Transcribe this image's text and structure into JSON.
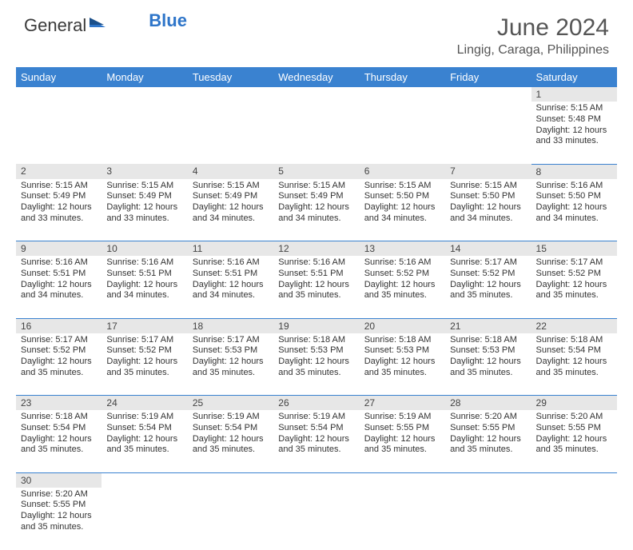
{
  "logo": {
    "part1": "General",
    "part2": "Blue"
  },
  "title": "June 2024",
  "location": "Lingig, Caraga, Philippines",
  "colors": {
    "header_bg": "#3a82d0",
    "header_text": "#ffffff",
    "daynum_bg": "#e7e7e7",
    "border": "#3a82d0",
    "logo_blue": "#2e75c9"
  },
  "weekdays": [
    "Sunday",
    "Monday",
    "Tuesday",
    "Wednesday",
    "Thursday",
    "Friday",
    "Saturday"
  ],
  "weeks": [
    [
      null,
      null,
      null,
      null,
      null,
      null,
      {
        "n": "1",
        "sr": "Sunrise: 5:15 AM",
        "ss": "Sunset: 5:48 PM",
        "d1": "Daylight: 12 hours",
        "d2": "and 33 minutes."
      }
    ],
    [
      {
        "n": "2",
        "sr": "Sunrise: 5:15 AM",
        "ss": "Sunset: 5:49 PM",
        "d1": "Daylight: 12 hours",
        "d2": "and 33 minutes."
      },
      {
        "n": "3",
        "sr": "Sunrise: 5:15 AM",
        "ss": "Sunset: 5:49 PM",
        "d1": "Daylight: 12 hours",
        "d2": "and 33 minutes."
      },
      {
        "n": "4",
        "sr": "Sunrise: 5:15 AM",
        "ss": "Sunset: 5:49 PM",
        "d1": "Daylight: 12 hours",
        "d2": "and 34 minutes."
      },
      {
        "n": "5",
        "sr": "Sunrise: 5:15 AM",
        "ss": "Sunset: 5:49 PM",
        "d1": "Daylight: 12 hours",
        "d2": "and 34 minutes."
      },
      {
        "n": "6",
        "sr": "Sunrise: 5:15 AM",
        "ss": "Sunset: 5:50 PM",
        "d1": "Daylight: 12 hours",
        "d2": "and 34 minutes."
      },
      {
        "n": "7",
        "sr": "Sunrise: 5:15 AM",
        "ss": "Sunset: 5:50 PM",
        "d1": "Daylight: 12 hours",
        "d2": "and 34 minutes."
      },
      {
        "n": "8",
        "sr": "Sunrise: 5:16 AM",
        "ss": "Sunset: 5:50 PM",
        "d1": "Daylight: 12 hours",
        "d2": "and 34 minutes."
      }
    ],
    [
      {
        "n": "9",
        "sr": "Sunrise: 5:16 AM",
        "ss": "Sunset: 5:51 PM",
        "d1": "Daylight: 12 hours",
        "d2": "and 34 minutes."
      },
      {
        "n": "10",
        "sr": "Sunrise: 5:16 AM",
        "ss": "Sunset: 5:51 PM",
        "d1": "Daylight: 12 hours",
        "d2": "and 34 minutes."
      },
      {
        "n": "11",
        "sr": "Sunrise: 5:16 AM",
        "ss": "Sunset: 5:51 PM",
        "d1": "Daylight: 12 hours",
        "d2": "and 34 minutes."
      },
      {
        "n": "12",
        "sr": "Sunrise: 5:16 AM",
        "ss": "Sunset: 5:51 PM",
        "d1": "Daylight: 12 hours",
        "d2": "and 35 minutes."
      },
      {
        "n": "13",
        "sr": "Sunrise: 5:16 AM",
        "ss": "Sunset: 5:52 PM",
        "d1": "Daylight: 12 hours",
        "d2": "and 35 minutes."
      },
      {
        "n": "14",
        "sr": "Sunrise: 5:17 AM",
        "ss": "Sunset: 5:52 PM",
        "d1": "Daylight: 12 hours",
        "d2": "and 35 minutes."
      },
      {
        "n": "15",
        "sr": "Sunrise: 5:17 AM",
        "ss": "Sunset: 5:52 PM",
        "d1": "Daylight: 12 hours",
        "d2": "and 35 minutes."
      }
    ],
    [
      {
        "n": "16",
        "sr": "Sunrise: 5:17 AM",
        "ss": "Sunset: 5:52 PM",
        "d1": "Daylight: 12 hours",
        "d2": "and 35 minutes."
      },
      {
        "n": "17",
        "sr": "Sunrise: 5:17 AM",
        "ss": "Sunset: 5:52 PM",
        "d1": "Daylight: 12 hours",
        "d2": "and 35 minutes."
      },
      {
        "n": "18",
        "sr": "Sunrise: 5:17 AM",
        "ss": "Sunset: 5:53 PM",
        "d1": "Daylight: 12 hours",
        "d2": "and 35 minutes."
      },
      {
        "n": "19",
        "sr": "Sunrise: 5:18 AM",
        "ss": "Sunset: 5:53 PM",
        "d1": "Daylight: 12 hours",
        "d2": "and 35 minutes."
      },
      {
        "n": "20",
        "sr": "Sunrise: 5:18 AM",
        "ss": "Sunset: 5:53 PM",
        "d1": "Daylight: 12 hours",
        "d2": "and 35 minutes."
      },
      {
        "n": "21",
        "sr": "Sunrise: 5:18 AM",
        "ss": "Sunset: 5:53 PM",
        "d1": "Daylight: 12 hours",
        "d2": "and 35 minutes."
      },
      {
        "n": "22",
        "sr": "Sunrise: 5:18 AM",
        "ss": "Sunset: 5:54 PM",
        "d1": "Daylight: 12 hours",
        "d2": "and 35 minutes."
      }
    ],
    [
      {
        "n": "23",
        "sr": "Sunrise: 5:18 AM",
        "ss": "Sunset: 5:54 PM",
        "d1": "Daylight: 12 hours",
        "d2": "and 35 minutes."
      },
      {
        "n": "24",
        "sr": "Sunrise: 5:19 AM",
        "ss": "Sunset: 5:54 PM",
        "d1": "Daylight: 12 hours",
        "d2": "and 35 minutes."
      },
      {
        "n": "25",
        "sr": "Sunrise: 5:19 AM",
        "ss": "Sunset: 5:54 PM",
        "d1": "Daylight: 12 hours",
        "d2": "and 35 minutes."
      },
      {
        "n": "26",
        "sr": "Sunrise: 5:19 AM",
        "ss": "Sunset: 5:54 PM",
        "d1": "Daylight: 12 hours",
        "d2": "and 35 minutes."
      },
      {
        "n": "27",
        "sr": "Sunrise: 5:19 AM",
        "ss": "Sunset: 5:55 PM",
        "d1": "Daylight: 12 hours",
        "d2": "and 35 minutes."
      },
      {
        "n": "28",
        "sr": "Sunrise: 5:20 AM",
        "ss": "Sunset: 5:55 PM",
        "d1": "Daylight: 12 hours",
        "d2": "and 35 minutes."
      },
      {
        "n": "29",
        "sr": "Sunrise: 5:20 AM",
        "ss": "Sunset: 5:55 PM",
        "d1": "Daylight: 12 hours",
        "d2": "and 35 minutes."
      }
    ],
    [
      {
        "n": "30",
        "sr": "Sunrise: 5:20 AM",
        "ss": "Sunset: 5:55 PM",
        "d1": "Daylight: 12 hours",
        "d2": "and 35 minutes."
      },
      null,
      null,
      null,
      null,
      null,
      null
    ]
  ]
}
